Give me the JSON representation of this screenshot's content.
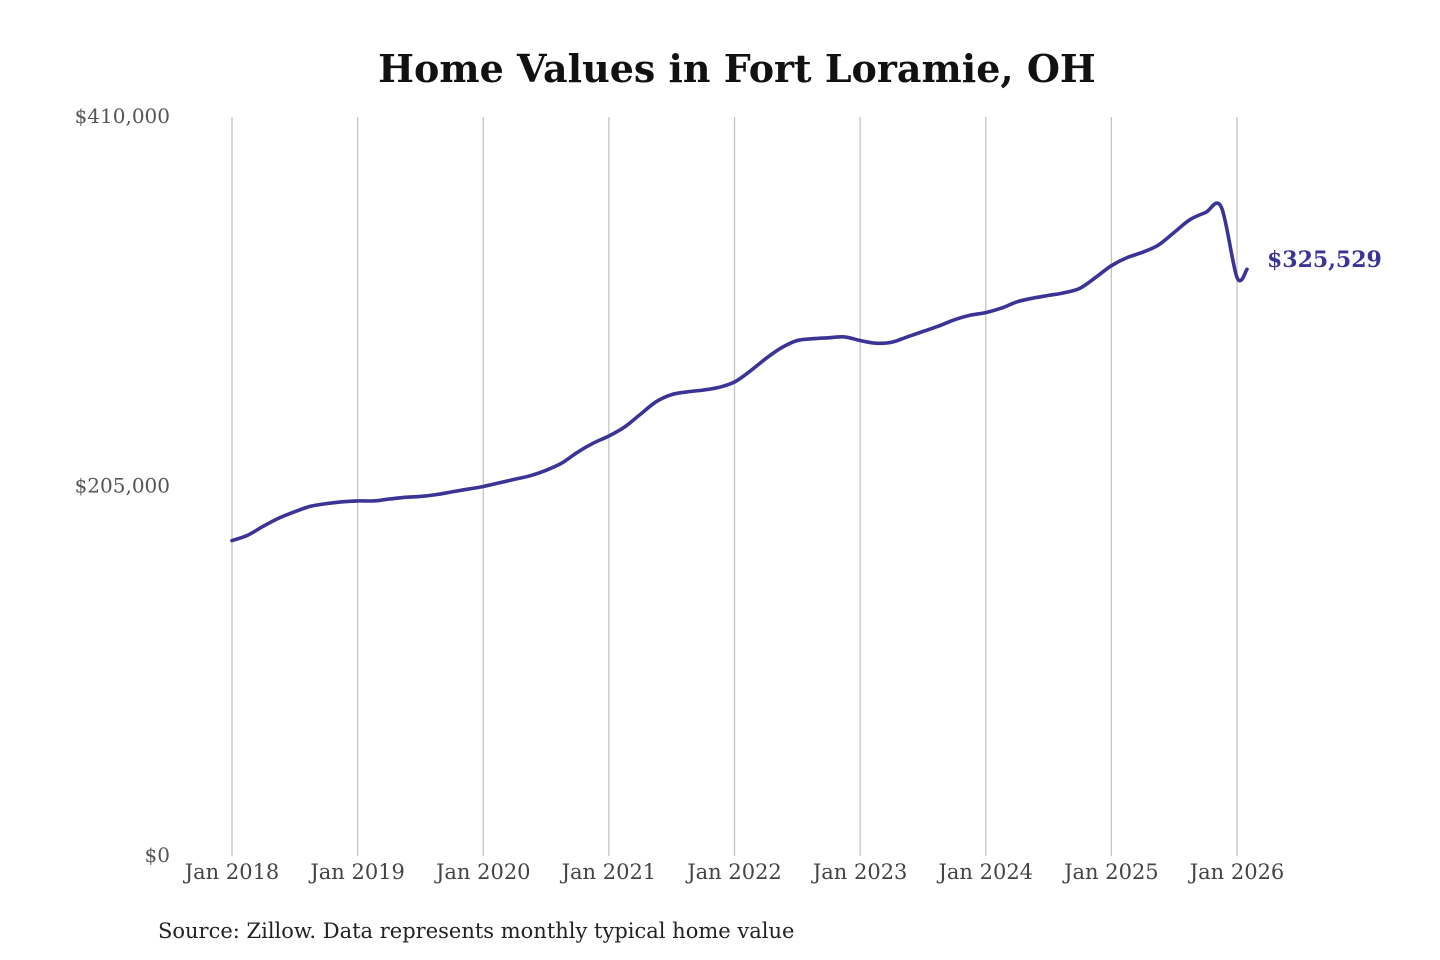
{
  "chart_data": {
    "type": "line",
    "title": "Home Values in Fort Loramie, OH",
    "source": "Source: Zillow. Data represents monthly typical home value",
    "ylim": [
      0,
      410000
    ],
    "y_ticks": [
      "$0",
      "$205,000",
      "$410,000"
    ],
    "y_tick_values": [
      0,
      205000,
      410000
    ],
    "xlim": [
      2018.0,
      2026.0
    ],
    "x_ticks": [
      "Jan 2018",
      "Jan 2019",
      "Jan 2020",
      "Jan 2021",
      "Jan 2022",
      "Jan 2023",
      "Jan 2024",
      "Jan 2025",
      "Jan 2026"
    ],
    "x_tick_values": [
      2018,
      2019,
      2020,
      2021,
      2022,
      2023,
      2024,
      2025,
      2026
    ],
    "grid": "vertical",
    "line_color": "#3b3396",
    "end_label": "$325,529",
    "series": [
      {
        "x": [
          2018.0,
          2018.125,
          2018.25,
          2018.375,
          2018.5,
          2018.625,
          2018.75,
          2018.875,
          2019.0,
          2019.125,
          2019.25,
          2019.375,
          2019.5,
          2019.625,
          2019.75,
          2019.875,
          2020.0,
          2020.125,
          2020.25,
          2020.375,
          2020.5,
          2020.625,
          2020.75,
          2020.875,
          2021.0,
          2021.125,
          2021.25,
          2021.375,
          2021.5,
          2021.625,
          2021.75,
          2021.875,
          2022.0,
          2022.125,
          2022.25,
          2022.375,
          2022.5,
          2022.625,
          2022.75,
          2022.875,
          2023.0,
          2023.125,
          2023.25,
          2023.375,
          2023.5,
          2023.625,
          2023.75,
          2023.875,
          2024.0,
          2024.125,
          2024.25,
          2024.375,
          2024.5,
          2024.625,
          2024.75,
          2024.875,
          2025.0,
          2025.125,
          2025.25,
          2025.375,
          2025.5,
          2025.625,
          2025.75,
          2025.875,
          2026.0,
          2026.08
        ],
        "values": [
          175000,
          178000,
          183000,
          187500,
          191000,
          194000,
          195500,
          196500,
          197000,
          197000,
          198000,
          199000,
          199500,
          200500,
          202000,
          203500,
          205000,
          207000,
          209000,
          211000,
          214000,
          218000,
          224000,
          229000,
          233000,
          238000,
          245000,
          252000,
          256000,
          257500,
          258500,
          260000,
          263000,
          269000,
          276000,
          282000,
          286000,
          287000,
          287500,
          288000,
          286000,
          284500,
          285000,
          288000,
          291000,
          294000,
          297500,
          300000,
          301500,
          304000,
          307500,
          309500,
          311000,
          312500,
          315000,
          321000,
          327500,
          332000,
          335000,
          339000,
          346000,
          353000,
          357000,
          360000,
          321000,
          325529
        ]
      }
    ]
  }
}
